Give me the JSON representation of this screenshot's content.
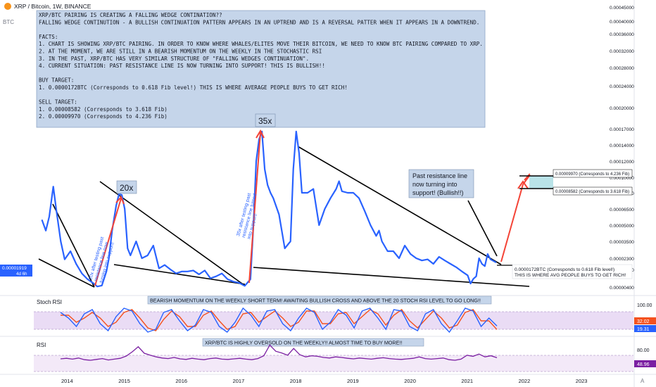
{
  "header": {
    "symbol_title": "XRP / Bitcoin, 1W, BINANCE",
    "currency_badge": "BTC",
    "icon": "bitcoin-badge-icon"
  },
  "note_box": {
    "lines": [
      "XRP/BTC PAIRING IS CREATING A FALLING WEDGE CONTINATION??",
      "FALLING WEDGE CONTINUTION - A BULLISH CONTINUATION PATTERN APPEARS IN AN UPTREND AND IS A REVERSAL PATTER WHEN IT APPEARS IN A DOWNTREND.",
      "",
      "FACTS:",
      "1. CHART IS SHOWING XRP/BTC PAIRING. IN ORDER TO KNOW WHERE WHALES/ELITES MOVE THEIR BITCOIN, WE NEED TO KNOW BTC PAIRING COMPARED TO XRP.",
      "2. AT THE MOMENT, WE ARE STILL IN A BEARISH MOMENTUM ON THE WEEKLY IN THE STOCHASTIC RSI",
      "3. IN THE PAST, XRP/BTC HAS VERY SIMILAR STRUCTURE OF \"FALLING WEDGES CONTINUATION\".",
      "4. CURRENT SITUATION: PAST RESISTANCE LINE IS NOW TURNING INTO SUPPORT! THIS IS BULLISH!!",
      "",
      "BUY TARGET:",
      "1. 0.0000172BTC (Corresponds to 0.618 Fib level!) THIS IS WHERE AVERAGE PEOPLE BUYS TO GET RICH!",
      "",
      "SELL TARGET:",
      "1. 0.00008582 (Corresponds to 3.618 Fib)",
      "2. 0.00009970 (Corresponds to 4.236 Fib)"
    ]
  },
  "annotations": {
    "label_20x": "20x",
    "label_35x": "35x",
    "rot_20x": "20x after testing past resistance line now turning into support!",
    "rot_35x": "35x after testing past resistance line turned into support!",
    "past_resistance": [
      "Past resistance line",
      "now turning into",
      "support! (Bullish!!)"
    ],
    "buy_label": [
      "0.0000172BTC (Corresponds to 0.618 Fib level!)",
      "THIS IS WHERE AVG PEOPLE BUYS TO GET RICH!"
    ],
    "sell_top": "0.00009970 (Corresponds to 4.236 Fib)",
    "sell_bottom": "0.00008582 (Corresponds to 3.618 Fib)"
  },
  "panels": {
    "stoch_title": "Stoch RSI",
    "stoch_note": "BEARISH MOMENTUM ON THE WEEKLY SHORT TERM! AWAITING BULLISH CROSS AND ABOVE THE 20 STOCH RSI LEVEL TO GO LONG!!",
    "rsi_title": "RSI",
    "rsi_note": "XRP/BTC IS HIGHLY OVERSOLD ON THE WEEKLY!! ALMOST TIME TO BUY MORE!!"
  },
  "price_badge": {
    "value": "0.00001919",
    "countdown": "4d 6h"
  },
  "stoch_badges": {
    "k": "32.02",
    "d": "19.31"
  },
  "rsi_badge": "48.96",
  "auto_label": "A",
  "colors": {
    "price": "#2962ff",
    "stoch_k": "#2962ff",
    "stoch_d": "#f4511e",
    "rsi": "#7b1fa2",
    "note_bg": "#c5d5ea",
    "band_stoch": "#eadcf5",
    "band_rsi": "#f3e9f8",
    "arrow": "#f44336",
    "target_box": "#b9e3e8"
  },
  "chart_data": [
    {
      "type": "line",
      "title": "XRP / Bitcoin, 1W, BINANCE",
      "x_axis_labels": [
        "2014",
        "2015",
        "2016",
        "2017",
        "2018",
        "2019",
        "2020",
        "2021",
        "2022",
        "2023"
      ],
      "y_axis_labels": [
        "0.00000400",
        "0.00001300",
        "0.00002300",
        "0.00003500",
        "0.00005000",
        "0.00006500",
        "0.00008000",
        "0.00010000",
        "0.00012000",
        "0.00014000",
        "0.00017000",
        "0.00020000",
        "0.00024000",
        "0.00028000",
        "0.00032000",
        "0.00036000",
        "0.00040000",
        "0.00045000"
      ],
      "series": [
        {
          "x": [
            2013.55,
            2013.62,
            2013.68,
            2013.75,
            2013.8,
            2013.88,
            2013.95,
            2014.05,
            2014.15,
            2014.25,
            2014.35,
            2014.45,
            2014.52,
            2014.6,
            2014.68,
            2014.72,
            2014.78,
            2014.85,
            2014.9,
            2014.95,
            2015.0,
            2015.05,
            2015.1,
            2015.2,
            2015.3,
            2015.4,
            2015.5,
            2015.6,
            2015.7,
            2015.8,
            2015.9,
            2016.0,
            2016.1,
            2016.2,
            2016.3,
            2016.4,
            2016.5,
            2016.6,
            2016.7,
            2016.8,
            2016.9,
            2017.0,
            2017.1,
            2017.2,
            2017.25,
            2017.3,
            2017.35,
            2017.4,
            2017.45,
            2017.5,
            2017.55,
            2017.6,
            2017.7,
            2017.8,
            2017.9,
            2017.95,
            2018.0,
            2018.05,
            2018.1,
            2018.2,
            2018.3,
            2018.4,
            2018.5,
            2018.6,
            2018.7,
            2018.75,
            2018.8,
            2018.9,
            2019.0,
            2019.1,
            2019.2,
            2019.3,
            2019.4,
            2019.45,
            2019.5,
            2019.6,
            2019.7,
            2019.8,
            2019.9,
            2020.0,
            2020.1,
            2020.2,
            2020.3,
            2020.4,
            2020.5,
            2020.6,
            2020.7,
            2020.8,
            2020.9,
            2021.0,
            2021.05,
            2021.1,
            2021.15,
            2021.2,
            2021.25,
            2021.3,
            2021.35,
            2021.4,
            2021.5
          ],
          "y": [
            5.5e-05,
            4.5e-05,
            5.8e-05,
            8.8e-05,
            6.5e-05,
            3.5e-05,
            2.2e-05,
            2.8e-05,
            1.8e-05,
            1.1e-05,
            8e-06,
            6e-06,
            4.3e-06,
            4.8e-06,
            1.2e-05,
            2.2e-05,
            4.5e-05,
            6.8e-05,
            7.9e-05,
            7.8e-05,
            6.5e-05,
            3e-05,
            2.5e-05,
            3.5e-05,
            2.3e-05,
            2.5e-05,
            3.2e-05,
            1.4e-05,
            1.7e-05,
            1.3e-05,
            1.1e-05,
            1.2e-05,
            1.2e-05,
            1.25e-05,
            1.05e-05,
            1.25e-05,
            8.5e-06,
            9.5e-06,
            1.1e-05,
            8e-06,
            6.8e-06,
            6.2e-06,
            4.6e-06,
            8e-06,
            4.8e-05,
            0.00012,
            0.00015,
            0.000165,
            0.00011,
            9e-05,
            8e-05,
            7.5e-05,
            6e-05,
            3e-05,
            3.5e-05,
            0.00011,
            0.000165,
            0.00013,
            8e-05,
            8e-05,
            8.5e-05,
            5e-05,
            6.5e-05,
            7.5e-05,
            8.5e-05,
            9.5e-05,
            8.2e-05,
            8e-05,
            8e-05,
            7.5e-05,
            6.3e-05,
            5e-05,
            4e-05,
            4.5e-05,
            3.5e-05,
            2.8e-05,
            2.8e-05,
            2.3e-05,
            3.2e-05,
            2.6e-05,
            2.3e-05,
            2.1e-05,
            2.2e-05,
            1.8e-05,
            2.4e-05,
            2.1e-05,
            1.8e-05,
            1.5e-05,
            1.2e-05,
            1e-05,
            5.8e-06,
            8.2e-06,
            9.5e-06,
            2.3e-05,
            1.8e-05,
            1.6e-05,
            2.6e-05,
            2.2e-05,
            1.919e-05
          ]
        }
      ]
    },
    {
      "type": "line",
      "title": "Stoch RSI",
      "y_axis_labels": [
        "100.00"
      ],
      "series": [
        {
          "name": "K",
          "values": [
            80,
            60,
            30,
            75,
            90,
            40,
            15,
            65,
            95,
            85,
            40,
            10,
            20,
            80,
            90,
            50,
            15,
            35,
            90,
            80,
            30,
            10,
            45,
            95,
            70,
            30,
            85,
            90,
            40,
            15,
            60,
            95,
            80,
            20,
            45,
            90,
            70,
            25,
            85,
            95,
            60,
            20,
            90,
            85,
            30,
            15,
            75,
            90,
            40,
            10,
            50,
            95,
            85,
            30,
            60,
            32.02
          ]
        },
        {
          "name": "D",
          "values": [
            70,
            70,
            45,
            60,
            80,
            60,
            30,
            45,
            80,
            90,
            60,
            25,
            15,
            55,
            85,
            65,
            30,
            30,
            70,
            85,
            50,
            20,
            30,
            75,
            80,
            45,
            65,
            85,
            60,
            30,
            45,
            85,
            85,
            40,
            40,
            75,
            80,
            40,
            65,
            90,
            75,
            35,
            70,
            90,
            50,
            25,
            55,
            85,
            60,
            25,
            35,
            80,
            90,
            50,
            50,
            19.31
          ]
        }
      ]
    },
    {
      "type": "line",
      "title": "RSI",
      "y_axis_labels": [
        "80.00"
      ],
      "series": [
        {
          "name": "RSI",
          "values": [
            45,
            47,
            44,
            48,
            42,
            40,
            43,
            46,
            41,
            44,
            47,
            55,
            70,
            88,
            65,
            58,
            52,
            48,
            46,
            50,
            45,
            43,
            47,
            44,
            42,
            46,
            48,
            44,
            43,
            45,
            47,
            44,
            42,
            46,
            56,
            94,
            72,
            66,
            58,
            82,
            60,
            52,
            56,
            54,
            50,
            48,
            52,
            50,
            47,
            45,
            48,
            46,
            44,
            47,
            49,
            46,
            44,
            43,
            45,
            47,
            52,
            46,
            44,
            46,
            48,
            42,
            40,
            44,
            58,
            54,
            62,
            52,
            56,
            48.96
          ]
        }
      ]
    }
  ]
}
